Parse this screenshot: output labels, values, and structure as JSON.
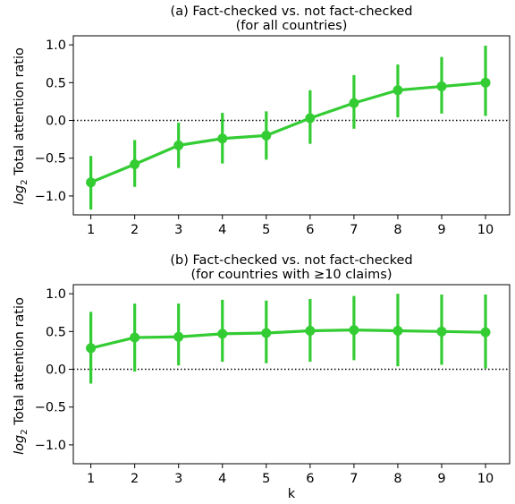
{
  "chart_data": [
    {
      "type": "line",
      "title_line1": "(a) Fact-checked vs. not fact-checked",
      "title_line2": "(for all countries)",
      "xlabel": "",
      "ylabel_main": "log",
      "ylabel_sub": "2",
      "ylabel_rest": " Total attention ratio",
      "x": [
        1,
        2,
        3,
        4,
        5,
        6,
        7,
        8,
        9,
        10
      ],
      "y": [
        -0.82,
        -0.58,
        -0.33,
        -0.24,
        -0.2,
        0.03,
        0.23,
        0.4,
        0.45,
        0.5
      ],
      "err_low": [
        -1.18,
        -0.88,
        -0.63,
        -0.57,
        -0.52,
        -0.31,
        -0.11,
        0.04,
        0.09,
        0.06
      ],
      "err_high": [
        -0.47,
        -0.26,
        -0.03,
        0.1,
        0.12,
        0.4,
        0.6,
        0.74,
        0.84,
        0.99
      ],
      "xlim": [
        0.6,
        10.55
      ],
      "ylim": [
        -1.25,
        1.12
      ],
      "yticks": [
        -1.0,
        -0.5,
        0.0,
        0.5,
        1.0
      ],
      "ytick_labels": [
        "−1.0",
        "−0.5",
        "0.0",
        "0.5",
        "1.0"
      ],
      "xtick_labels": [
        "1",
        "2",
        "3",
        "4",
        "5",
        "6",
        "7",
        "8",
        "9",
        "10"
      ],
      "reference_line": 0.0,
      "color": "#33cc33"
    },
    {
      "type": "line",
      "title_line1": "(b) Fact-checked vs. not fact-checked",
      "title_line2": "(for countries with  ≥10 claims)",
      "xlabel": "k",
      "ylabel_main": "log",
      "ylabel_sub": "2",
      "ylabel_rest": " Total attention ratio",
      "x": [
        1,
        2,
        3,
        4,
        5,
        6,
        7,
        8,
        9,
        10
      ],
      "y": [
        0.28,
        0.42,
        0.43,
        0.47,
        0.48,
        0.51,
        0.52,
        0.51,
        0.5,
        0.49
      ],
      "err_low": [
        -0.19,
        -0.03,
        0.05,
        0.1,
        0.08,
        0.1,
        0.12,
        0.04,
        0.06,
        0.01
      ],
      "err_high": [
        0.76,
        0.87,
        0.87,
        0.92,
        0.91,
        0.93,
        0.97,
        1.0,
        0.99,
        0.99
      ],
      "xlim": [
        0.6,
        10.55
      ],
      "ylim": [
        -1.25,
        1.12
      ],
      "yticks": [
        -1.0,
        -0.5,
        0.0,
        0.5,
        1.0
      ],
      "ytick_labels": [
        "−1.0",
        "−0.5",
        "0.0",
        "0.5",
        "1.0"
      ],
      "xtick_labels": [
        "1",
        "2",
        "3",
        "4",
        "5",
        "6",
        "7",
        "8",
        "9",
        "10"
      ],
      "reference_line": 0.0,
      "color": "#33cc33"
    }
  ]
}
